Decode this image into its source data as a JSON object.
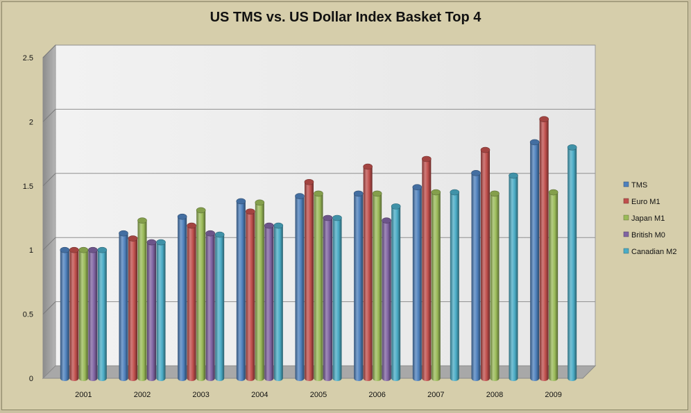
{
  "chart_data": {
    "type": "bar",
    "title": "US TMS vs. US Dollar Index Basket Top 4",
    "categories": [
      "2001",
      "2002",
      "2003",
      "2004",
      "2005",
      "2006",
      "2007",
      "2008",
      "2009"
    ],
    "series": [
      {
        "name": "TMS",
        "color": "#4f81bd",
        "values": [
          1.0,
          1.13,
          1.26,
          1.38,
          1.42,
          1.44,
          1.49,
          1.6,
          1.84
        ]
      },
      {
        "name": "Euro M1",
        "color": "#c0504d",
        "values": [
          1.0,
          1.09,
          1.19,
          1.3,
          1.53,
          1.65,
          1.71,
          1.78,
          2.02
        ]
      },
      {
        "name": "Japan M1",
        "color": "#9bbb59",
        "values": [
          1.0,
          1.23,
          1.31,
          1.37,
          1.44,
          1.44,
          1.45,
          1.44,
          1.45
        ]
      },
      {
        "name": "British M0",
        "color": "#8064a2",
        "values": [
          1.0,
          1.06,
          1.13,
          1.19,
          1.25,
          1.23,
          null,
          null,
          null
        ]
      },
      {
        "name": "Canadian M2",
        "color": "#4bacc6",
        "values": [
          1.0,
          1.06,
          1.12,
          1.19,
          1.25,
          1.34,
          1.45,
          1.58,
          1.8
        ]
      }
    ],
    "yticks": [
      "0",
      "0.5",
      "1",
      "1.5",
      "2",
      "2.5"
    ],
    "ylim": [
      0,
      2.5
    ],
    "xlabel": "",
    "ylabel": "",
    "grid": true,
    "legend_position": "right"
  }
}
